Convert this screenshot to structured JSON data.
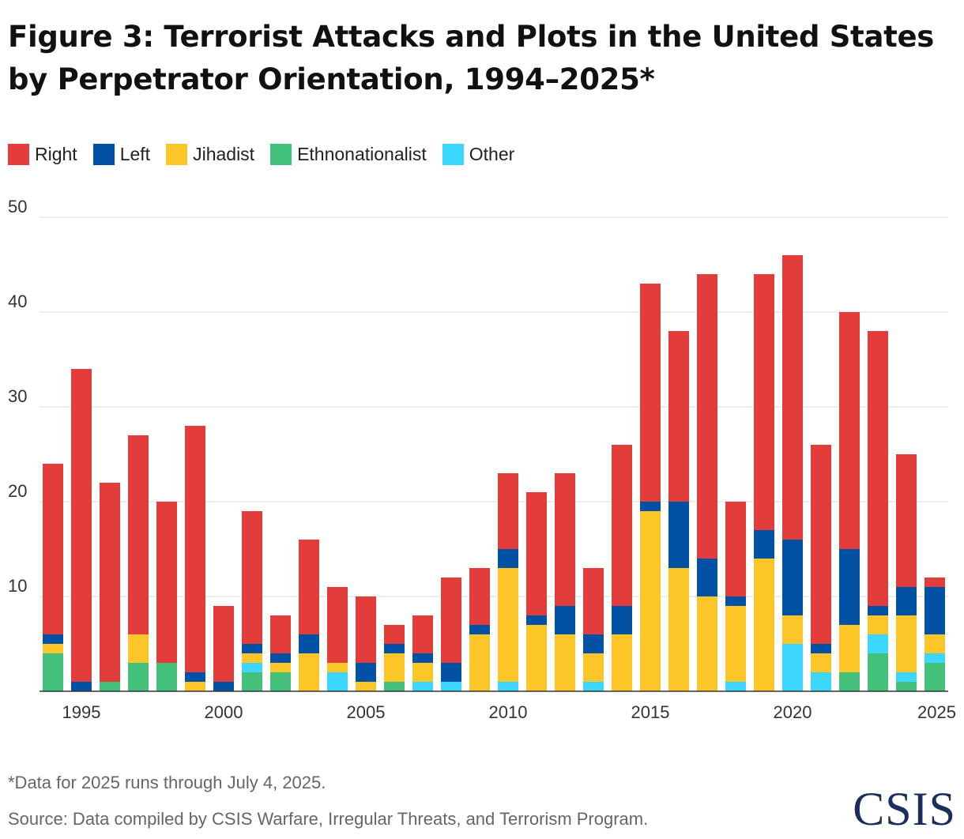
{
  "title_line1": "Figure 3: Terrorist Attacks and Plots in the United States",
  "title_line2": "by Perpetrator Orientation, 1994–2025*",
  "legend": [
    {
      "label": "Right",
      "color": "#e33d3b"
    },
    {
      "label": "Left",
      "color": "#0152a5"
    },
    {
      "label": "Jihadist",
      "color": "#fdc628"
    },
    {
      "label": "Ethnonationalist",
      "color": "#43c07a"
    },
    {
      "label": "Other",
      "color": "#3dd6fe"
    }
  ],
  "note": "*Data for 2025 runs through July 4, 2025.",
  "source": "Source: Data compiled by CSIS Warfare, Irregular Threats, and Terrorism Program.",
  "logo_text": "CSIS",
  "chart_data": {
    "type": "bar",
    "stacked": true,
    "categories": [
      "1994",
      "1995",
      "1996",
      "1997",
      "1998",
      "1999",
      "2000",
      "2001",
      "2002",
      "2003",
      "2004",
      "2005",
      "2006",
      "2007",
      "2008",
      "2009",
      "2010",
      "2011",
      "2012",
      "2013",
      "2014",
      "2015",
      "2016",
      "2017",
      "2018",
      "2019",
      "2020",
      "2021",
      "2022",
      "2023",
      "2024",
      "2025"
    ],
    "x_tick_labels": [
      "1995",
      "2000",
      "2005",
      "2010",
      "2015",
      "2020",
      "2025"
    ],
    "y_ticks": [
      10,
      20,
      30,
      40,
      50
    ],
    "ylim": [
      0,
      50
    ],
    "grid": true,
    "series": [
      {
        "name": "Ethnonationalist",
        "color": "#43c07a",
        "values": [
          4,
          0,
          1,
          3,
          3,
          0,
          0,
          2,
          2,
          0,
          0,
          0,
          1,
          0,
          0,
          0,
          0,
          0,
          0,
          0,
          0,
          0,
          0,
          0,
          0,
          0,
          0,
          0,
          2,
          4,
          1,
          3
        ]
      },
      {
        "name": "Other",
        "color": "#3dd6fe",
        "values": [
          0,
          0,
          0,
          0,
          0,
          0,
          0,
          1,
          0,
          0,
          2,
          0,
          0,
          1,
          1,
          0,
          1,
          0,
          0,
          1,
          0,
          0,
          0,
          0,
          1,
          0,
          5,
          2,
          0,
          2,
          1,
          1
        ]
      },
      {
        "name": "Jihadist",
        "color": "#fdc628",
        "values": [
          1,
          0,
          0,
          3,
          0,
          1,
          0,
          1,
          1,
          4,
          1,
          1,
          3,
          2,
          0,
          6,
          12,
          7,
          6,
          3,
          6,
          19,
          13,
          10,
          8,
          14,
          3,
          2,
          5,
          2,
          6,
          2
        ]
      },
      {
        "name": "Left",
        "color": "#0152a5",
        "values": [
          1,
          1,
          0,
          0,
          0,
          1,
          1,
          1,
          1,
          2,
          0,
          2,
          1,
          1,
          2,
          1,
          2,
          1,
          3,
          2,
          3,
          1,
          7,
          4,
          1,
          3,
          8,
          1,
          8,
          1,
          3,
          5
        ]
      },
      {
        "name": "Right",
        "color": "#e33d3b",
        "values": [
          18,
          33,
          21,
          21,
          17,
          26,
          8,
          14,
          4,
          10,
          8,
          7,
          2,
          4,
          9,
          6,
          8,
          13,
          14,
          7,
          17,
          23,
          18,
          30,
          10,
          27,
          30,
          21,
          25,
          29,
          14,
          1
        ]
      }
    ]
  }
}
